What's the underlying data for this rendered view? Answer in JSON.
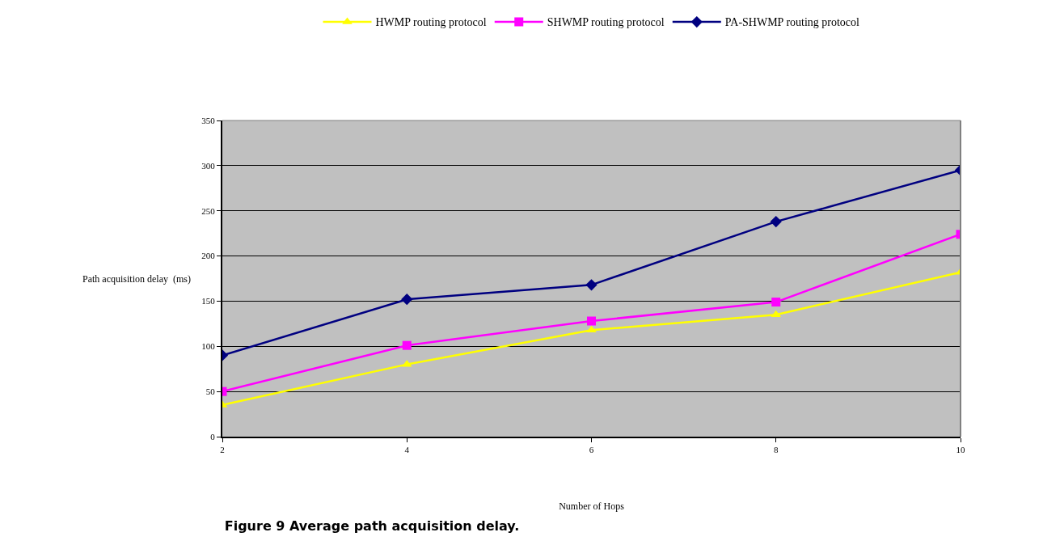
{
  "chart_data": {
    "type": "line",
    "title": "Figure 9 Average path acquisition delay.",
    "xlabel": "Number of Hops",
    "ylabel": "Path acquisition delay  (ms)",
    "x": [
      2,
      4,
      6,
      8,
      10
    ],
    "series": [
      {
        "name": "HWMP routing protocol",
        "color": "#ffff00",
        "marker": "triangle",
        "values": [
          35,
          80,
          118,
          135,
          182
        ]
      },
      {
        "name": "SHWMP routing protocol",
        "color": "#ff00ff",
        "marker": "square",
        "values": [
          50,
          101,
          128,
          149,
          224
        ]
      },
      {
        "name": "PA-SHWMP routing protocol",
        "color": "#000080",
        "marker": "diamond",
        "values": [
          90,
          152,
          168,
          238,
          295
        ]
      }
    ],
    "xlim": [
      2,
      10
    ],
    "xticks": [
      2,
      4,
      6,
      8,
      10
    ],
    "ylim": [
      0,
      350
    ],
    "yticks": [
      0,
      50,
      100,
      150,
      200,
      250,
      300,
      350
    ],
    "grid": "y",
    "legend": "top",
    "line_style": "solid"
  }
}
